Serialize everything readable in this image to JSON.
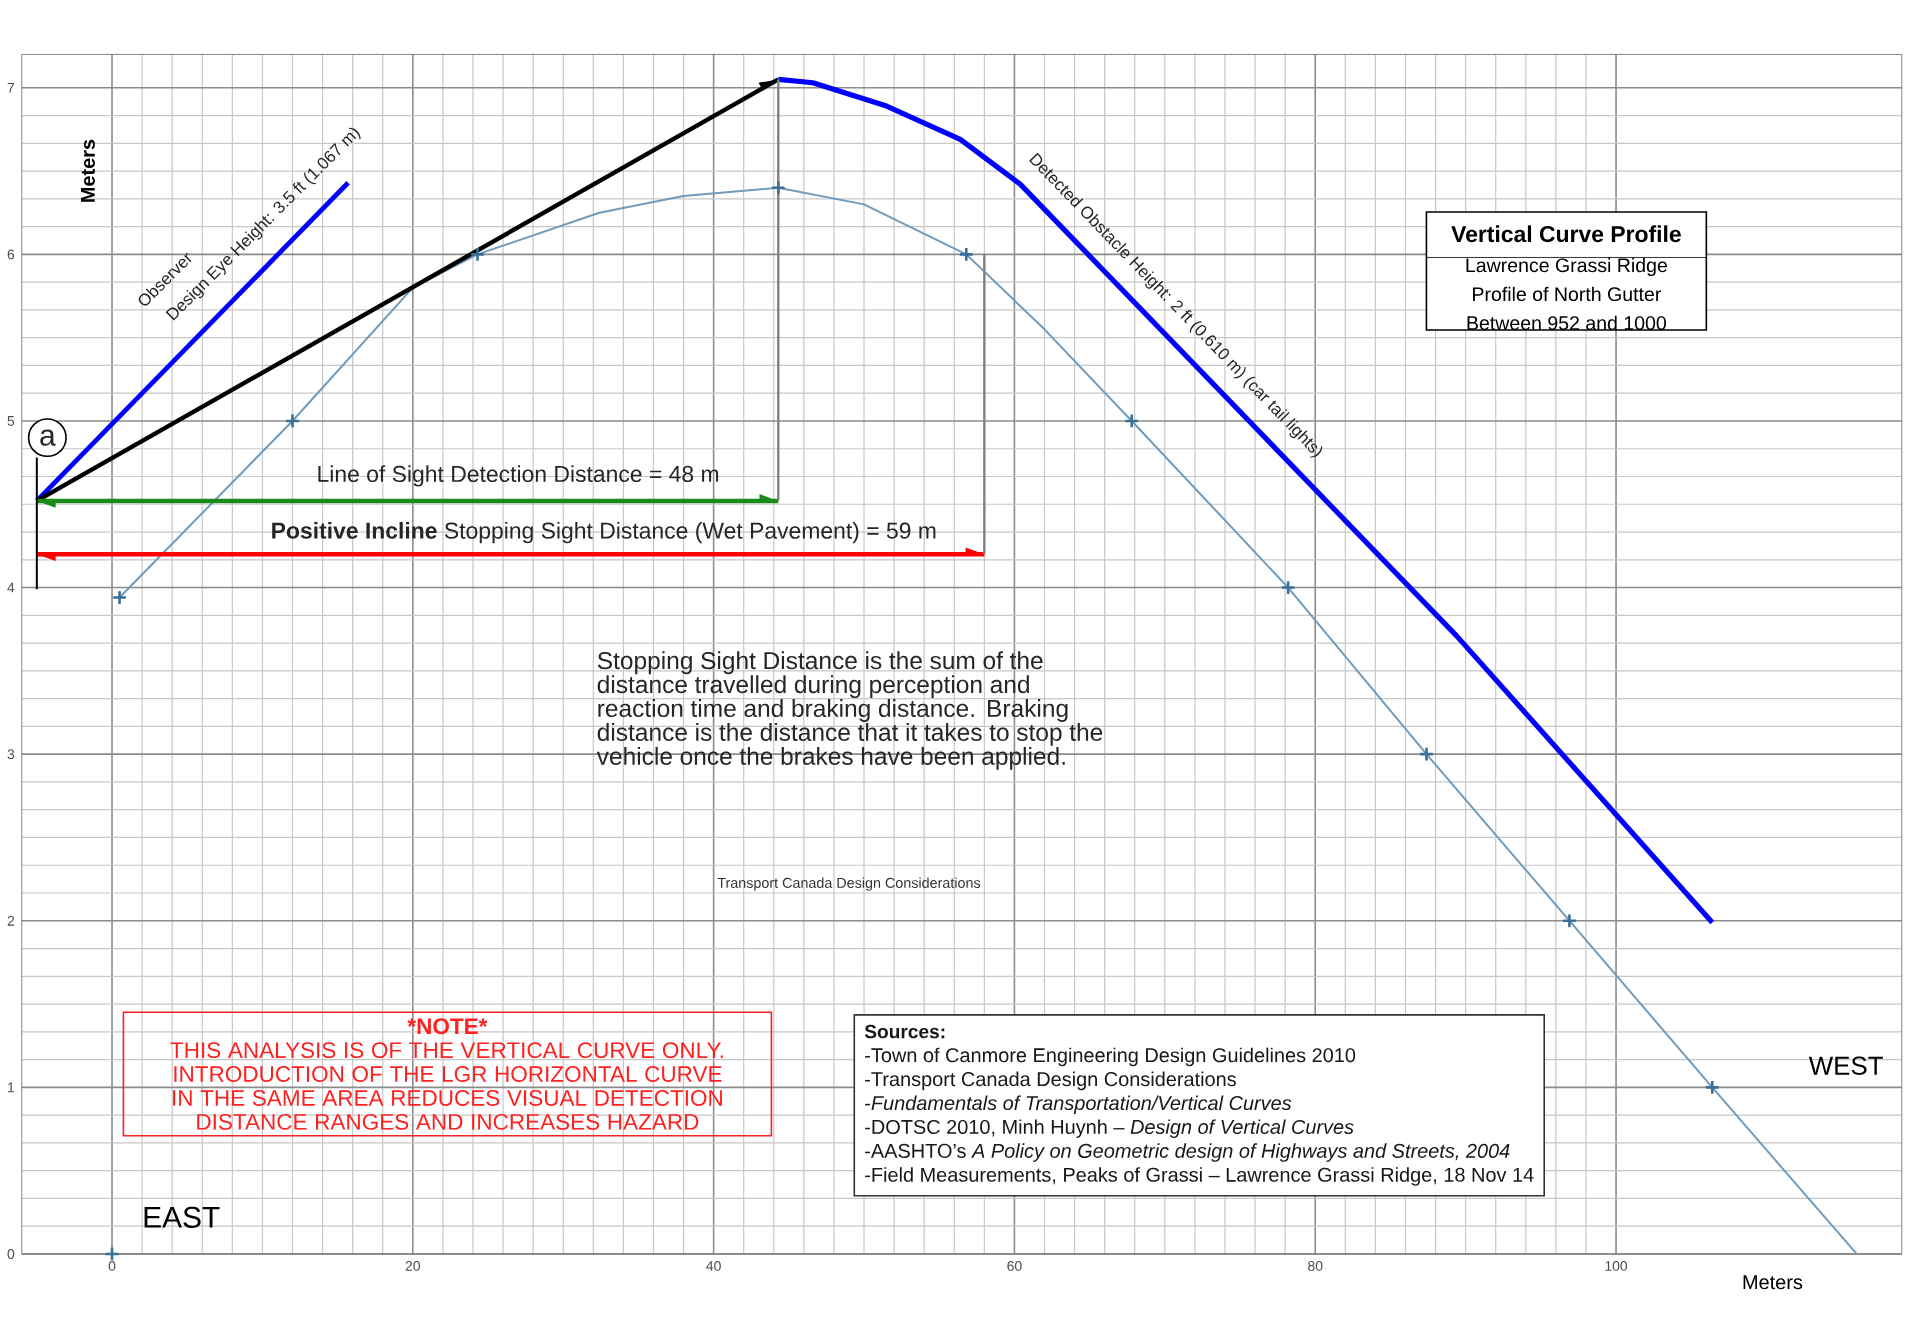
{
  "chart_data": {
    "type": "line",
    "title": "Vertical Curve Profile",
    "subtitle": "Lawrence Grassi Ridge Profile of North Gutter Between 952 and 1000",
    "xlabel": "Meters",
    "ylabel": "Meters",
    "xlim": [
      -6,
      119
    ],
    "ylim": [
      0,
      7.2
    ],
    "xticks": [
      0,
      20,
      40,
      60,
      80,
      100
    ],
    "yticks": [
      0,
      1,
      2,
      3,
      4,
      5,
      6,
      7
    ],
    "grid": true,
    "series": [
      {
        "color": "#6f9bbd",
        "x": [
          0.5,
          12,
          20,
          24.3,
          32.4,
          38,
          44.3,
          50,
          56.8,
          62,
          67.8,
          78.2,
          87.4,
          96.9,
          106.4,
          116
        ],
        "values": [
          3.94,
          5.0,
          5.8,
          6.0,
          6.25,
          6.35,
          6.4,
          6.3,
          6.0,
          5.55,
          5.0,
          4.0,
          3.0,
          2.0,
          1.0,
          0
        ]
      },
      {
        "type": "scatter",
        "color": "#3a6f96",
        "marker": "cross",
        "x": [
          0,
          0.5,
          12,
          24.3,
          44.3,
          56.8,
          67.8,
          78.2,
          87.4,
          96.9,
          106.4
        ],
        "values": [
          0,
          3.94,
          5,
          6,
          6.4,
          6,
          5,
          4,
          3,
          2,
          1
        ]
      },
      {
        "color": "#0000ff",
        "x": [
          44.3,
          46.6,
          51.5,
          56.4,
          60.4,
          89.4,
          106.4
        ],
        "values": [
          7.05,
          7.03,
          6.89,
          6.69,
          6.42,
          3.71,
          1.99
        ]
      },
      {
        "color": "#0000ff",
        "x": [
          -5,
          15.7
        ],
        "values": [
          4.52,
          6.43
        ]
      },
      {
        "color": "#000000",
        "x": [
          -5,
          44.3
        ],
        "values": [
          4.52,
          7.05
        ]
      },
      {
        "color": "#1a8a1a",
        "x": [
          -5,
          44.3
        ],
        "values": [
          4.52,
          4.52
        ]
      },
      {
        "color": "#ff0000",
        "x": [
          -5,
          58.0
        ],
        "values": [
          4.2,
          4.2
        ]
      },
      {
        "color": "#808080",
        "x": [
          44.3,
          44.3
        ],
        "values": [
          7.05,
          4.52
        ]
      },
      {
        "color": "#808080",
        "x": [
          58.0,
          58.0
        ],
        "values": [
          6.0,
          4.2
        ]
      },
      {
        "color": "#000000",
        "x": [
          -5,
          -5
        ],
        "values": [
          4.78,
          3.99
        ]
      }
    ],
    "annotations": [
      {
        "text": "a",
        "x": -4.3,
        "y": 4.9
      },
      "Observer",
      "Design Eye Height: 3.5 ft (1.067 m)",
      "Detected Obstacle Height: 2 ft (0.610 m) (car tail lights)",
      "Line of Sight Detection Distance = 48 m",
      "**Positive Incline** Stopping Sight Distance (Wet Pavement) = 59 m",
      "Stopping Sight Distance is the sum of the distance travelled during perception and reaction time and braking distance. Braking distance is the distance that it takes to stop the vehicle once the brakes have been applied.",
      "Transport Canada Design Considerations",
      "*NOTE*",
      "THIS ANALYSIS IS OF THE VERTICAL CURVE ONLY. INTRODUCTION OF THE LGR HORIZONTAL CURVE IN THE SAME AREA REDUCES VISUAL DETECTION DISTANCE RANGES AND INCREASES HAZARD",
      "Sources:",
      "-Town of Canmore Engineering Design Guidelines 2010",
      "-Transport Canada Design Considerations",
      "-*Fundamentals of Transportation/Vertical Curves*",
      "-DOTSC 2010, Minh Huynh – *Design of Vertical Curves*",
      "-AASHTO’s *A Policy on Geometric design of Highways and Streets, 2004*",
      "-Field Measurements, Peaks of Grassi – Lawrence Grassi Ridge, 18 Nov 14",
      "EAST",
      "WEST"
    ]
  }
}
